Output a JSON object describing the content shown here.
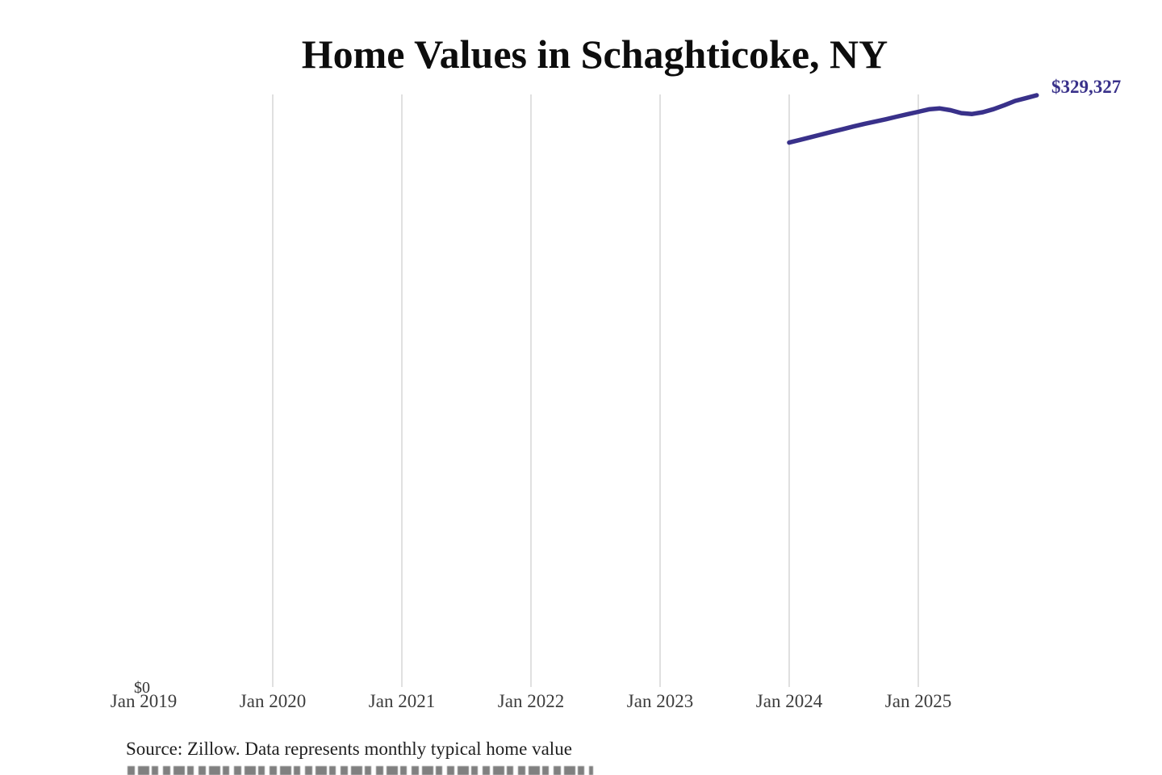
{
  "chart": {
    "title": "Home Values in Schaghticoke, NY",
    "end_label": "$329,327",
    "y_zero_label": "$0",
    "source": "Source: Zillow. Data represents monthly typical home value"
  },
  "chart_data": {
    "type": "line",
    "title": "Home Values in Schaghticoke, NY",
    "xlabel": "",
    "ylabel": "",
    "x_ticks": [
      "Jan 2019",
      "Jan 2020",
      "Jan 2021",
      "Jan 2022",
      "Jan 2023",
      "Jan 2024",
      "Jan 2025"
    ],
    "gridlines_at": [
      "Jan 2020",
      "Jan 2021",
      "Jan 2022",
      "Jan 2023",
      "Jan 2024",
      "Jan 2025"
    ],
    "ylim": [
      0,
      329327
    ],
    "y_tick_labels": [
      "$0"
    ],
    "grid": "vertical-only",
    "legend": "none",
    "colors": {
      "line": "#39318a",
      "gridline": "#d6d6d6",
      "axis_text": "#3d3d3d",
      "title_text": "#0d0d0d"
    },
    "end_annotation": {
      "text": "$329,327",
      "value": 329327
    },
    "series": [
      {
        "name": "Monthly typical home value",
        "color": "#39318a",
        "x": [
          "2024-01",
          "2024-02",
          "2024-03",
          "2024-04",
          "2024-05",
          "2024-06",
          "2024-07",
          "2024-08",
          "2024-09",
          "2024-10",
          "2024-11",
          "2024-12",
          "2025-01",
          "2025-02",
          "2025-03",
          "2025-04",
          "2025-05",
          "2025-06",
          "2025-07",
          "2025-08",
          "2025-09",
          "2025-10",
          "2025-11",
          "2025-12"
        ],
        "values": [
          303000,
          304500,
          306000,
          307500,
          309000,
          310500,
          312000,
          313400,
          314700,
          316000,
          317400,
          318800,
          320100,
          321500,
          322000,
          321000,
          319400,
          318900,
          319900,
          321600,
          323800,
          326200,
          327700,
          329327
        ]
      }
    ]
  }
}
